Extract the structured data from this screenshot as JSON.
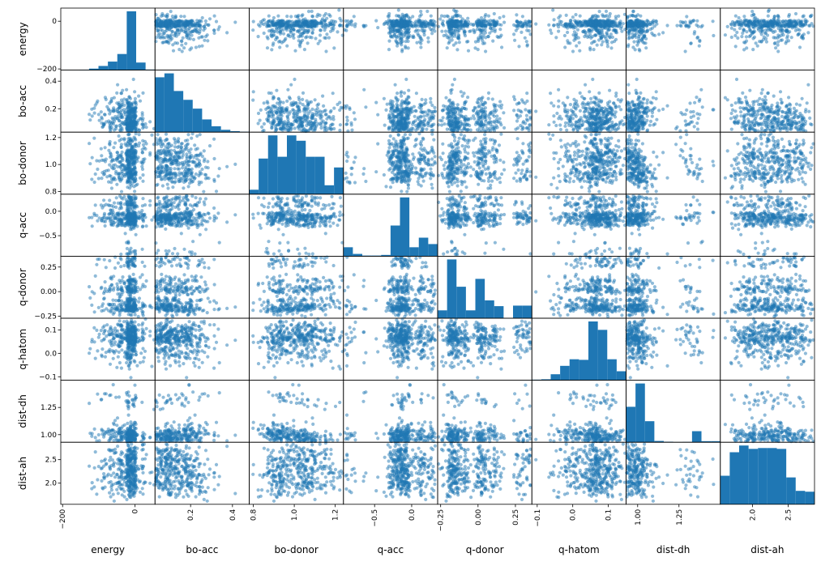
{
  "chart_data": {
    "type": "scatter",
    "subtype": "scatter-matrix",
    "title": "",
    "variables": [
      "energy",
      "bo-acc",
      "bo-donor",
      "q-acc",
      "q-donor",
      "q-hatom",
      "dist-dh",
      "dist-ah"
    ],
    "color": "#1f77b4",
    "diagonal": "histogram",
    "grid": false,
    "ranges": {
      "energy": [
        -205,
        55
      ],
      "bo-acc": [
        0.03,
        0.48
      ],
      "bo-donor": [
        0.78,
        1.24
      ],
      "q-acc": [
        -0.92,
        0.35
      ],
      "q-donor": [
        -0.27,
        0.36
      ],
      "q-hatom": [
        -0.115,
        0.15
      ],
      "dist-dh": [
        0.93,
        1.5
      ],
      "dist-ah": [
        1.55,
        2.87
      ]
    },
    "ticks": {
      "energy": {
        "values": [
          -200,
          0
        ],
        "labels": [
          "−200",
          "0"
        ]
      },
      "bo-acc": {
        "values": [
          0.2,
          0.4
        ],
        "labels": [
          "0.2",
          "0.4"
        ]
      },
      "bo-donor": {
        "values": [
          0.8,
          1.0,
          1.2
        ],
        "labels": [
          "0.8",
          "1.0",
          "1.2"
        ]
      },
      "q-acc": {
        "values": [
          -0.5,
          0.0
        ],
        "labels": [
          "−0.5",
          "0.0"
        ]
      },
      "q-donor": {
        "values": [
          -0.25,
          0.0,
          0.25
        ],
        "labels": [
          "−0.25",
          "0.00",
          "0.25"
        ]
      },
      "q-hatom": {
        "values": [
          -0.1,
          0.0,
          0.1
        ],
        "labels": [
          "−0.1",
          "0.0",
          "0.1"
        ]
      },
      "dist-dh": {
        "values": [
          1.0,
          1.25
        ],
        "labels": [
          "1.00",
          "1.25"
        ]
      },
      "dist-ah": {
        "values": [
          2.0,
          2.5
        ],
        "labels": [
          "2.0",
          "2.5"
        ]
      }
    },
    "x_tick_labels": [
      [
        "−200",
        "0"
      ],
      [
        "0.2",
        "0.4"
      ],
      [
        "0.8",
        "1.0",
        "1.2"
      ],
      [
        "−0.5",
        "0.0"
      ],
      [
        "−0.25",
        "0.00",
        "0.25"
      ],
      [
        "−0.1",
        "0.0",
        "0.1"
      ],
      [
        "1.00",
        "1.25"
      ],
      [
        "2.0",
        "2.5"
      ]
    ],
    "y_tick_labels": [
      [
        "−200",
        "0"
      ],
      [
        "0.2",
        "0.4"
      ],
      [
        "0.8",
        "1.0",
        "1.2"
      ],
      [
        "−0.5",
        "0.0"
      ],
      [
        "−0.25",
        "0.00",
        "0.25"
      ],
      [
        "−0.1",
        "0.0",
        "0.1"
      ],
      [
        "1.00",
        "1.25"
      ],
      [
        "2.0",
        "2.5"
      ]
    ],
    "histograms": {
      "energy": {
        "bins": [
          -205,
          -179,
          -153,
          -127,
          -101,
          -75,
          -49,
          -23,
          3,
          29,
          55
        ],
        "counts": [
          1,
          1,
          2,
          8,
          22,
          45,
          85,
          310,
          40,
          3
        ]
      },
      "bo-acc": {
        "bins": [
          0.03,
          0.075,
          0.12,
          0.165,
          0.21,
          0.255,
          0.3,
          0.345,
          0.39,
          0.435,
          0.48
        ],
        "counts": [
          280,
          300,
          210,
          165,
          120,
          65,
          30,
          12,
          5,
          2
        ]
      },
      "bo-donor": {
        "bins": [
          0.78,
          0.826,
          0.872,
          0.918,
          0.964,
          1.01,
          1.056,
          1.102,
          1.148,
          1.194,
          1.24
        ],
        "counts": [
          25,
          200,
          330,
          210,
          330,
          300,
          210,
          210,
          50,
          150
        ]
      },
      "q-acc": {
        "bins": [
          -0.92,
          -0.793,
          -0.666,
          -0.539,
          -0.412,
          -0.285,
          -0.158,
          -0.031,
          0.096,
          0.223,
          0.35
        ],
        "counts": [
          70,
          18,
          5,
          5,
          10,
          240,
          460,
          70,
          145,
          95
        ]
      },
      "q-donor": {
        "bins": [
          -0.27,
          -0.207,
          -0.144,
          -0.081,
          -0.018,
          0.045,
          0.108,
          0.171,
          0.234,
          0.297,
          0.36
        ],
        "counts": [
          75,
          560,
          300,
          75,
          375,
          170,
          115,
          0,
          120,
          120
        ]
      },
      "q-hatom": {
        "bins": [
          -0.115,
          -0.0885,
          -0.062,
          -0.0355,
          -0.009,
          0.0175,
          0.044,
          0.0705,
          0.097,
          0.1235,
          0.15
        ],
        "counts": [
          5,
          8,
          50,
          120,
          175,
          170,
          490,
          420,
          175,
          75
        ]
      },
      "dist-dh": {
        "bins": [
          0.93,
          0.987,
          1.044,
          1.101,
          1.158,
          1.215,
          1.272,
          1.329,
          1.386,
          1.443,
          1.5
        ],
        "counts": [
          320,
          530,
          190,
          12,
          5,
          2,
          3,
          100,
          10,
          10
        ]
      },
      "dist-ah": {
        "bins": [
          1.55,
          1.682,
          1.814,
          1.946,
          2.078,
          2.21,
          2.342,
          2.474,
          2.606,
          2.738,
          2.87
        ],
        "counts": [
          170,
          310,
          350,
          330,
          335,
          335,
          330,
          160,
          80,
          75
        ]
      }
    }
  }
}
